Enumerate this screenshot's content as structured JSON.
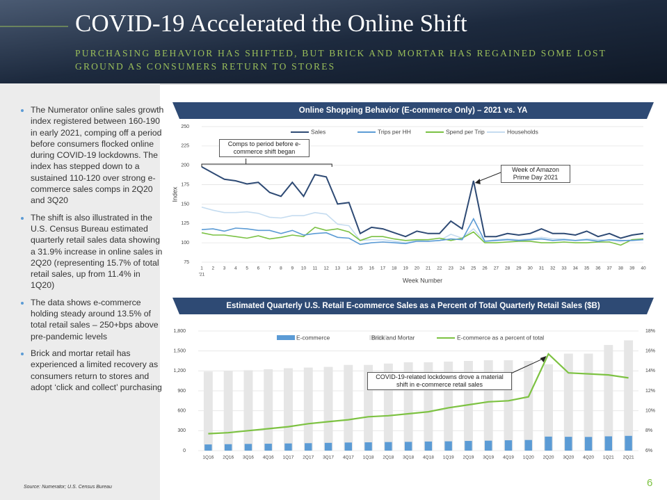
{
  "header": {
    "title": "COVID-19 Accelerated the Online Shift",
    "subtitle": "PURCHASING BEHAVIOR HAS SHIFTED, BUT BRICK AND MORTAR HAS REGAINED SOME LOST GROUND AS CONSUMERS RETURN TO STORES"
  },
  "bullets": [
    "The Numerator online sales growth index registered between 160-190 in early 2021, comping off a period before consumers flocked online during COVID-19 lockdowns. The index has stepped down to a sustained 110-120 over strong e-commerce sales comps in 2Q20 and 3Q20",
    "The shift is also illustrated in the U.S. Census Bureau estimated quarterly retail sales data showing a 31.9% increase in online sales in 2Q20 (representing 15.7% of total retail sales, up from 11.4% in 1Q20)",
    "The data shows e-commerce holding steady around 13.5% of total retail sales – 250+bps above pre-pandemic levels",
    "Brick and mortar retail has experienced a limited recovery as consumers return to stores and adopt ‘click and collect’ purchasing"
  ],
  "source": "Source: Numerator; U.S. Census Bureau",
  "page_number": "6",
  "chart_data": [
    {
      "type": "line",
      "title": "Online Shopping Behavior (E-commerce Only) – 2021 vs. YA",
      "x_label": "Week Number",
      "y_label": "Index",
      "year_label": "'21",
      "categories": [
        "1",
        "2",
        "3",
        "4",
        "5",
        "6",
        "7",
        "8",
        "9",
        "10",
        "11",
        "12",
        "13",
        "14",
        "15",
        "16",
        "17",
        "18",
        "19",
        "20",
        "21",
        "22",
        "23",
        "24",
        "25",
        "26",
        "27",
        "28",
        "29",
        "30",
        "31",
        "32",
        "33",
        "34",
        "35",
        "36",
        "37",
        "38",
        "39",
        "40"
      ],
      "ylim": [
        75,
        250
      ],
      "yticks": [
        75,
        100,
        125,
        150,
        175,
        200,
        225,
        250
      ],
      "grid": true,
      "annotations": [
        "Comps to period before e-commerce shift began",
        "Week of Amazon Prime Day 2021"
      ],
      "series": [
        {
          "name": "Sales",
          "color": "#2e4a74",
          "values": [
            198,
            190,
            182,
            180,
            176,
            178,
            165,
            160,
            178,
            160,
            188,
            185,
            150,
            152,
            112,
            120,
            118,
            113,
            108,
            115,
            112,
            112,
            128,
            118,
            180,
            108,
            108,
            112,
            110,
            112,
            118,
            112,
            112,
            110,
            115,
            108,
            112,
            106,
            110,
            112
          ]
        },
        {
          "name": "Trips per HH",
          "color": "#5b9bd5",
          "values": [
            117,
            118,
            115,
            119,
            118,
            116,
            116,
            112,
            116,
            110,
            112,
            113,
            107,
            106,
            98,
            100,
            101,
            100,
            99,
            102,
            102,
            103,
            105,
            104,
            131,
            102,
            103,
            104,
            103,
            104,
            105,
            103,
            104,
            103,
            104,
            102,
            104,
            103,
            103,
            104
          ]
        },
        {
          "name": "Spend per Trip",
          "color": "#7ac143",
          "values": [
            113,
            110,
            110,
            108,
            106,
            109,
            105,
            107,
            110,
            108,
            120,
            116,
            118,
            114,
            103,
            108,
            108,
            105,
            103,
            104,
            104,
            106,
            103,
            106,
            114,
            100,
            100,
            101,
            102,
            102,
            100,
            100,
            101,
            100,
            100,
            101,
            101,
            97,
            104,
            105
          ]
        },
        {
          "name": "Households",
          "color": "#c5dcf0",
          "values": [
            146,
            142,
            139,
            139,
            140,
            138,
            133,
            132,
            135,
            135,
            139,
            137,
            124,
            122,
            103,
            104,
            104,
            102,
            100,
            103,
            102,
            103,
            111,
            106,
            118,
            102,
            104,
            105,
            104,
            105,
            107,
            105,
            105,
            103,
            105,
            104,
            103,
            102,
            104,
            104
          ]
        }
      ]
    },
    {
      "type": "bar",
      "title": "Estimated Quarterly U.S. Retail E-commerce Sales as a Percent of Total Quarterly Retail Sales ($B)",
      "categories": [
        "1Q16",
        "2Q16",
        "3Q16",
        "4Q16",
        "1Q17",
        "2Q17",
        "3Q17",
        "4Q17",
        "1Q18",
        "2Q18",
        "3Q18",
        "4Q18",
        "1Q19",
        "2Q19",
        "3Q19",
        "4Q19",
        "1Q20",
        "2Q20",
        "3Q20",
        "4Q20",
        "1Q21",
        "2Q21"
      ],
      "ylim": [
        0,
        1800
      ],
      "yticks": [
        0,
        300,
        600,
        900,
        {
          "value": 1200,
          "label": "1,200"
        },
        {
          "value": 1500,
          "label": "1,500"
        },
        {
          "value": 1800,
          "label": "1,800"
        }
      ],
      "y2lim": [
        6,
        18
      ],
      "y2ticks": [
        {
          "value": 6,
          "label": "6%"
        },
        {
          "value": 8,
          "label": "8%"
        },
        {
          "value": 10,
          "label": "10%"
        },
        {
          "value": 12,
          "label": "12%"
        },
        {
          "value": 14,
          "label": "14%"
        },
        {
          "value": 16,
          "label": "16%"
        },
        {
          "value": 18,
          "label": "18%"
        }
      ],
      "grid": true,
      "annotations": [
        "COVID-19-related lockdowns drove a material shift in e-commerce retail sales"
      ],
      "series": [
        {
          "name": "E-commerce",
          "color": "#5b9bd5",
          "values": [
            93,
            97,
            101,
            104,
            108,
            112,
            117,
            122,
            125,
            129,
            132,
            137,
            140,
            146,
            150,
            156,
            160,
            211,
            208,
            206,
            215,
            222
          ]
        },
        {
          "name": "Brick and Mortar",
          "color": "#e6e6e6",
          "values": [
            1190,
            1200,
            1210,
            1225,
            1240,
            1250,
            1260,
            1290,
            1290,
            1310,
            1330,
            1330,
            1340,
            1350,
            1360,
            1360,
            1350,
            1300,
            1460,
            1460,
            1590,
            1660
          ]
        },
        {
          "name": "E-commerce as a percent of total",
          "color": "#7dc242",
          "type": "line",
          "axis": "y2",
          "values": [
            7.7,
            7.8,
            8.0,
            8.2,
            8.4,
            8.7,
            8.9,
            9.1,
            9.4,
            9.5,
            9.7,
            9.9,
            10.3,
            10.6,
            10.9,
            11.0,
            11.4,
            15.7,
            13.8,
            13.7,
            13.6,
            13.3
          ]
        }
      ]
    }
  ]
}
